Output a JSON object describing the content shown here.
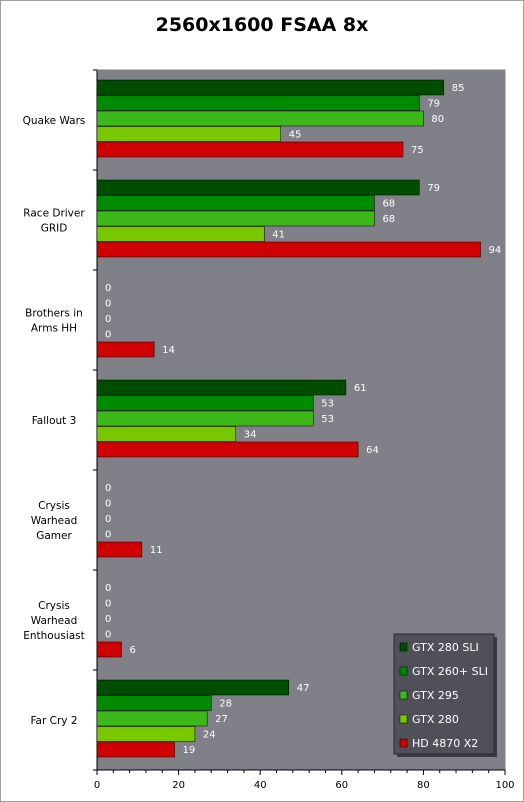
{
  "chart_data": {
    "type": "bar",
    "orientation": "horizontal",
    "title": "2560x1600 FSAA 8x",
    "categories": [
      [
        "Quake Wars"
      ],
      [
        "Race Driver",
        "GRID"
      ],
      [
        "Brothers in",
        "Arms HH"
      ],
      [
        "Fallout 3"
      ],
      [
        "Crysis",
        "Warhead",
        "Gamer"
      ],
      [
        "Crysis",
        "Warhead",
        "Enthousiast"
      ],
      [
        "Far Cry 2"
      ]
    ],
    "series": [
      {
        "name": "GTX 280 SLI",
        "color": "#004d00",
        "values": [
          85,
          79,
          0,
          61,
          0,
          0,
          47
        ]
      },
      {
        "name": "GTX 260+ SLI",
        "color": "#008a00",
        "values": [
          79,
          68,
          0,
          53,
          0,
          0,
          28
        ]
      },
      {
        "name": "GTX 295",
        "color": "#3cb81a",
        "values": [
          80,
          68,
          0,
          53,
          0,
          0,
          27
        ]
      },
      {
        "name": "GTX 280",
        "color": "#78c800",
        "values": [
          45,
          41,
          0,
          34,
          0,
          0,
          24
        ]
      },
      {
        "name": "HD 4870  X2",
        "color": "#d00000",
        "values": [
          75,
          94,
          14,
          64,
          11,
          6,
          19
        ]
      }
    ],
    "xlim": [
      0,
      100
    ],
    "xticks": [
      "0",
      "20",
      "40",
      "60",
      "80",
      "100"
    ],
    "grid": false,
    "legend_position": "bottom-right",
    "plot_background": "#808088"
  }
}
